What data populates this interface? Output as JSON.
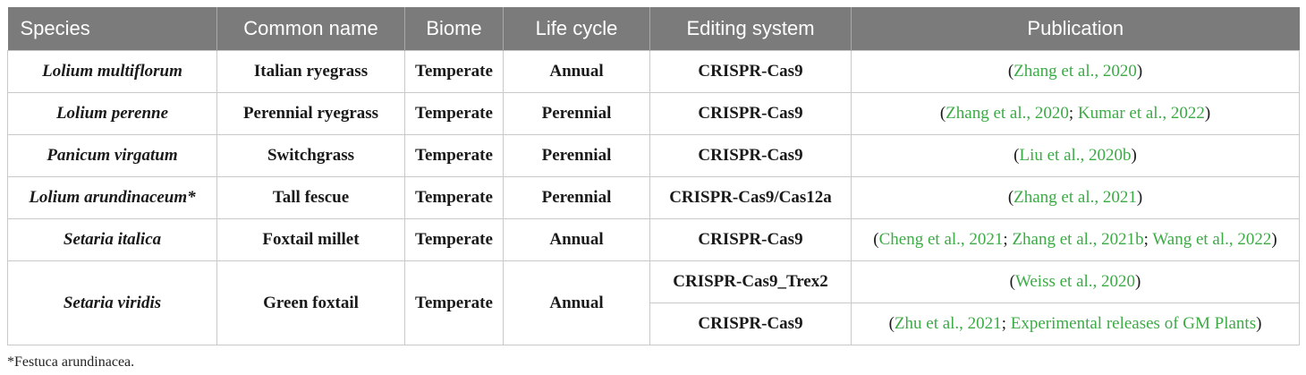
{
  "header": {
    "species": "Species",
    "common_name": "Common name",
    "biome": "Biome",
    "life_cycle": "Life cycle",
    "editing_system": "Editing system",
    "publication": "Publication"
  },
  "rows": [
    {
      "species": "Lolium multiflorum",
      "common_name": "Italian ryegrass",
      "biome": "Temperate",
      "life_cycle": "Annual",
      "editing_system": "CRISPR-Cas9",
      "refs": [
        "Zhang et al., 2020"
      ]
    },
    {
      "species": "Lolium perenne",
      "common_name": "Perennial ryegrass",
      "biome": "Temperate",
      "life_cycle": "Perennial",
      "editing_system": "CRISPR-Cas9",
      "refs": [
        "Zhang et al., 2020",
        "Kumar et al., 2022"
      ]
    },
    {
      "species": "Panicum virgatum",
      "common_name": "Switchgrass",
      "biome": "Temperate",
      "life_cycle": "Perennial",
      "editing_system": "CRISPR-Cas9",
      "refs": [
        "Liu et al., 2020b"
      ]
    },
    {
      "species": "Lolium arundinaceum*",
      "common_name": "Tall fescue",
      "biome": "Temperate",
      "life_cycle": "Perennial",
      "editing_system": "CRISPR-Cas9/Cas12a",
      "refs": [
        "Zhang et al., 2021"
      ]
    },
    {
      "species": "Setaria italica",
      "common_name": "Foxtail millet",
      "biome": "Temperate",
      "life_cycle": "Annual",
      "editing_system": "CRISPR-Cas9",
      "refs": [
        "Cheng et al., 2021",
        "Zhang et al., 2021b",
        "Wang et al., 2022"
      ]
    },
    {
      "species": "Setaria viridis",
      "common_name": "Green foxtail",
      "biome": "Temperate",
      "life_cycle": "Annual",
      "sub": [
        {
          "editing_system": "CRISPR-Cas9_Trex2",
          "refs": [
            "Weiss et al., 2020"
          ]
        },
        {
          "editing_system": "CRISPR-Cas9",
          "refs": [
            "Zhu et al., 2021",
            "Experimental releases of GM Plants"
          ]
        }
      ]
    }
  ],
  "footnote": "*Festuca arundinacea.",
  "colors": {
    "header_bg": "#7b7b7b",
    "reference_link": "#3cab46",
    "border": "#c9c9c9"
  }
}
